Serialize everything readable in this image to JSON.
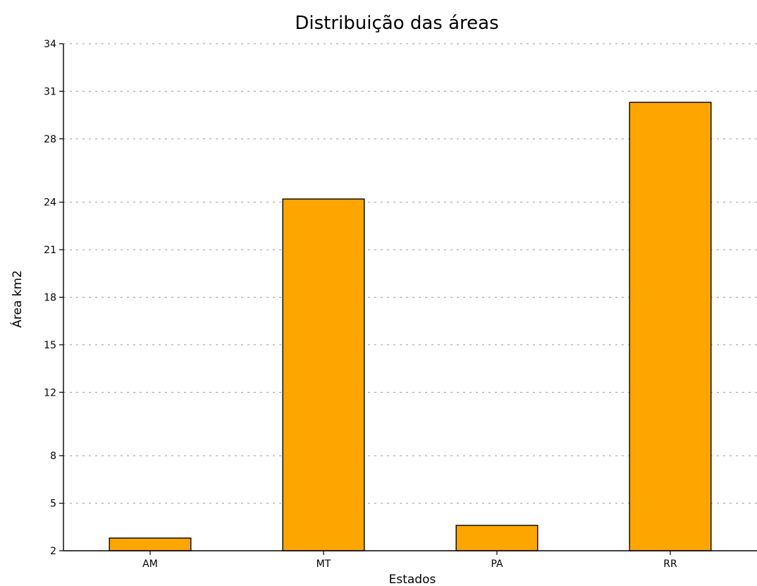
{
  "chart_data": {
    "type": "bar",
    "title": "Distribuição das áreas",
    "xlabel": "Estados",
    "ylabel": "Área km2",
    "categories": [
      "AM",
      "MT",
      "PA",
      "RR"
    ],
    "values": [
      2.8,
      24.2,
      3.6,
      30.3
    ],
    "ylim": [
      2,
      34
    ],
    "yticks": [
      {
        "value": 2,
        "label": "2"
      },
      {
        "value": 5,
        "label": "5"
      },
      {
        "value": 8,
        "label": "8"
      },
      {
        "value": 12,
        "label": "12"
      },
      {
        "value": 15,
        "label": "15"
      },
      {
        "value": 18,
        "label": "18"
      },
      {
        "value": 21,
        "label": "21"
      },
      {
        "value": 24,
        "label": "24"
      },
      {
        "value": 28,
        "label": "28"
      },
      {
        "value": 31,
        "label": "31"
      },
      {
        "value": 34,
        "label": "34"
      }
    ],
    "grid": "horizontal-dotted",
    "bar_color": "#FFA500",
    "legend": "none"
  }
}
